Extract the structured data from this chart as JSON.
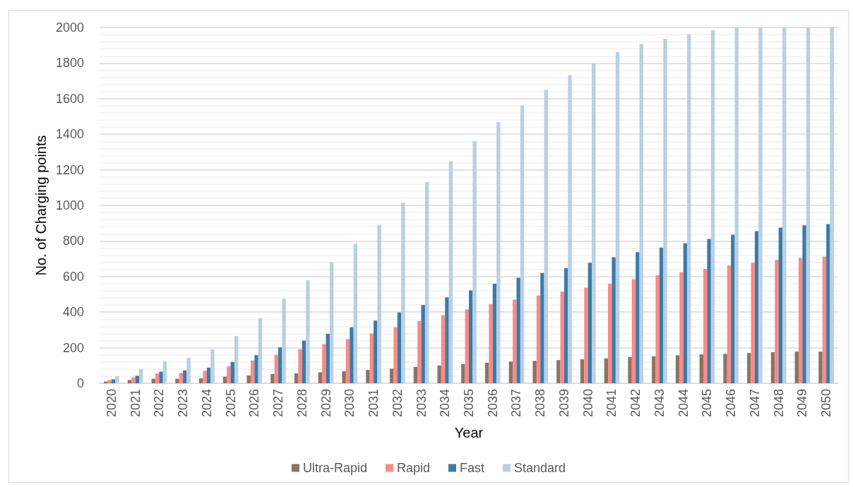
{
  "chart_data": {
    "type": "bar",
    "xlabel": "Year",
    "ylabel": "No. of Charging points",
    "categories": [
      "2020",
      "2021",
      "2022",
      "2023",
      "2024",
      "2025",
      "2026",
      "2027",
      "2028",
      "2029",
      "2030",
      "2031",
      "2032",
      "2033",
      "2034",
      "2035",
      "2036",
      "2037",
      "2038",
      "2039",
      "2040",
      "2041",
      "2042",
      "2043",
      "2044",
      "2045",
      "2046",
      "2047",
      "2048",
      "2049",
      "2050"
    ],
    "series": [
      {
        "name": "Ultra-Rapid",
        "color": "#8b7366",
        "values": [
          10,
          18,
          25,
          25,
          28,
          37,
          44,
          52,
          56,
          62,
          68,
          75,
          82,
          92,
          100,
          108,
          115,
          122,
          126,
          130,
          135,
          140,
          147,
          152,
          157,
          162,
          166,
          170,
          175,
          178,
          178
        ]
      },
      {
        "name": "Rapid",
        "color": "#f98b85",
        "values": [
          18,
          33,
          55,
          58,
          70,
          95,
          128,
          160,
          192,
          220,
          248,
          280,
          315,
          350,
          383,
          415,
          445,
          470,
          493,
          515,
          538,
          560,
          585,
          607,
          625,
          643,
          662,
          678,
          693,
          705,
          712
        ]
      },
      {
        "name": "Fast",
        "color": "#3f7aa6",
        "values": [
          22,
          42,
          65,
          72,
          88,
          120,
          158,
          202,
          240,
          278,
          315,
          352,
          398,
          440,
          483,
          522,
          560,
          593,
          620,
          648,
          678,
          708,
          737,
          763,
          787,
          812,
          835,
          855,
          875,
          888,
          895
        ]
      },
      {
        "name": "Standard",
        "color": "#b7d1e3",
        "values": [
          40,
          80,
          122,
          143,
          190,
          265,
          365,
          475,
          578,
          680,
          785,
          890,
          1015,
          1132,
          1248,
          1362,
          1468,
          1562,
          1650,
          1732,
          1798,
          1862,
          1908,
          1937,
          1962,
          1985,
          2000,
          2000,
          2000,
          2000,
          2000
        ]
      }
    ],
    "ylim": [
      0,
      2000
    ],
    "yticks": [
      0,
      200,
      400,
      600,
      800,
      1000,
      1200,
      1400,
      1600,
      1800,
      2000
    ],
    "grid": "y",
    "legend": "bottom"
  }
}
